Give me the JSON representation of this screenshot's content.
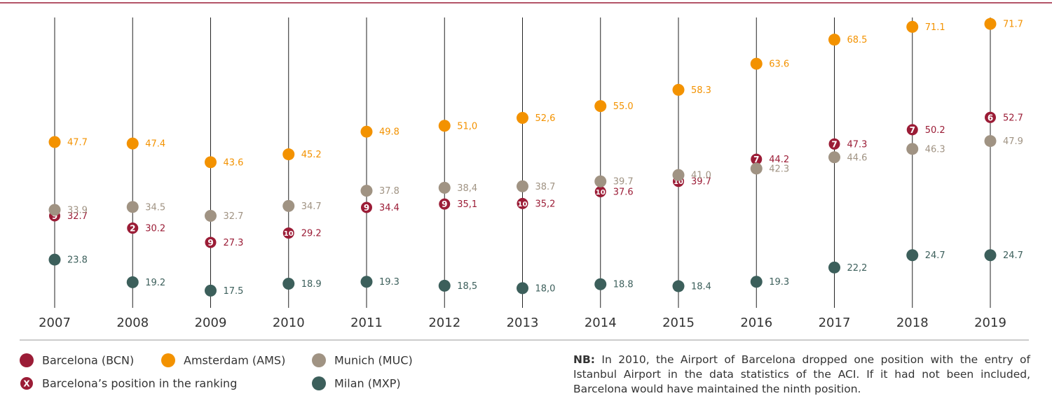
{
  "chart_data": {
    "type": "dot",
    "categories": [
      "2007",
      "2008",
      "2009",
      "2010",
      "2011",
      "2012",
      "2013",
      "2014",
      "2015",
      "2016",
      "2017",
      "2018",
      "2019"
    ],
    "ylim": [
      14,
      74
    ],
    "series": [
      {
        "name": "Barcelona (BCN)",
        "color": "#9b1c36",
        "values": [
          32.7,
          30.2,
          27.3,
          29.2,
          34.4,
          35.1,
          35.2,
          37.6,
          39.7,
          44.2,
          47.3,
          50.2,
          52.7
        ],
        "value_labels": [
          "32.7",
          "30.2",
          "27.3",
          "29.2",
          "34.4",
          "35,1",
          "35,2",
          "37.6",
          "39.7",
          "44.2",
          "47.3",
          "50.2",
          "52.7"
        ],
        "ranks": [
          9,
          2,
          9,
          10,
          9,
          9,
          10,
          10,
          10,
          7,
          7,
          7,
          6
        ]
      },
      {
        "name": "Amsterdam (AMS)",
        "color": "#f39200",
        "values": [
          47.7,
          47.4,
          43.6,
          45.2,
          49.8,
          51.0,
          52.6,
          55.0,
          58.3,
          63.6,
          68.5,
          71.1,
          71.7
        ],
        "value_labels": [
          "47.7",
          "47.4",
          "43.6",
          "45.2",
          "49.8",
          "51,0",
          "52,6",
          "55.0",
          "58.3",
          "63.6",
          "68.5",
          "71.1",
          "71.7"
        ]
      },
      {
        "name": "Munich (MUC)",
        "color": "#a09383",
        "values": [
          33.9,
          34.5,
          32.7,
          34.7,
          37.8,
          38.4,
          38.7,
          39.7,
          41.0,
          42.3,
          44.6,
          46.3,
          47.9
        ],
        "value_labels": [
          "33.9",
          "34.5",
          "32.7",
          "34.7",
          "37.8",
          "38,4",
          "38.7",
          "39.7",
          "41.0",
          "42.3",
          "44.6",
          "46.3",
          "47.9"
        ]
      },
      {
        "name": "Milan (MXP)",
        "color": "#3c5f5b",
        "values": [
          23.8,
          19.2,
          17.5,
          18.9,
          19.3,
          18.5,
          18.0,
          18.8,
          18.4,
          19.3,
          22.2,
          24.7,
          24.7
        ],
        "value_labels": [
          "23.8",
          "19.2",
          "17.5",
          "18.9",
          "19.3",
          "18,5",
          "18,0",
          "18.8",
          "18.4",
          "19.3",
          "22,2",
          "24.7",
          "24.7"
        ]
      }
    ],
    "rank_legend": {
      "marker": "X",
      "label": "Barcelona’s position in the ranking"
    },
    "note": {
      "lead": "NB:",
      "text": " In 2010, the Airport of Barcelona dropped one position with the entry of Istanbul Airport in the data statistics of the ACI. If it had not been included, Barcelona would have maintained the ninth position."
    }
  }
}
